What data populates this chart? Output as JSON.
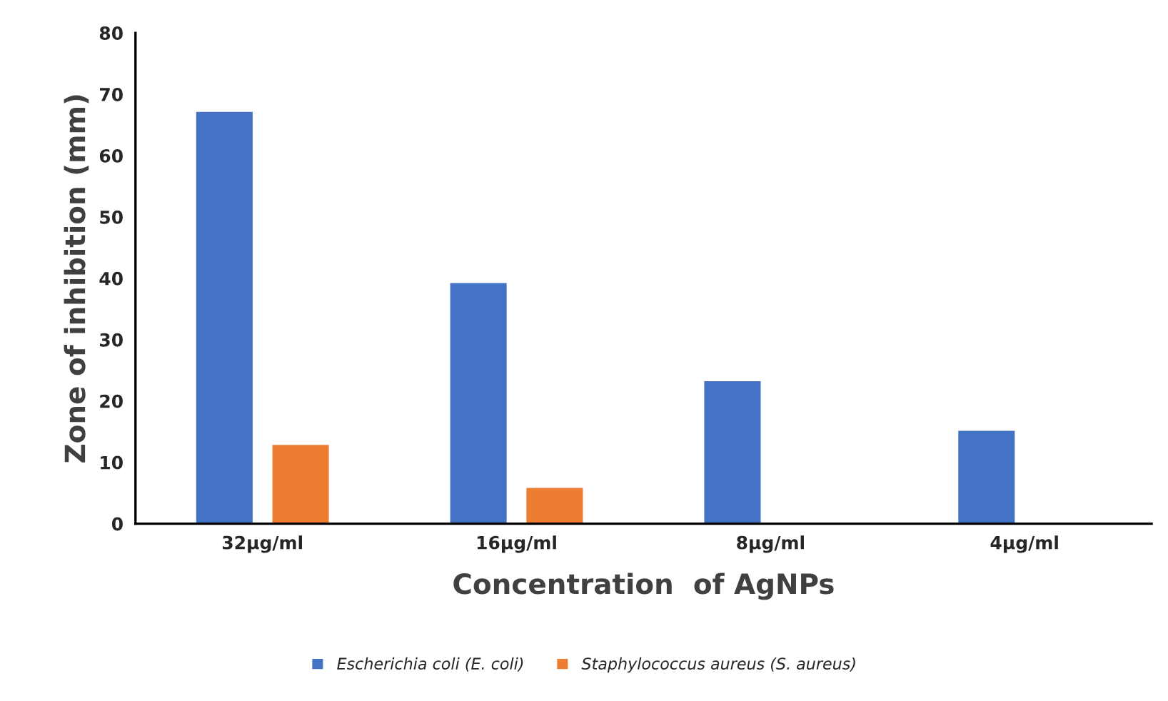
{
  "chart_data": {
    "type": "bar",
    "categories": [
      "32µg/ml",
      "16µg/ml",
      "8µg/ml",
      "4µg/ml"
    ],
    "series": [
      {
        "name": "Escherichia coli (E. coli)",
        "color": "#4472c4",
        "values": [
          67.3,
          39.4,
          23.4,
          15.3
        ]
      },
      {
        "name": "Staphylococcus aureus (S. aureus)",
        "color": "#ed7d31",
        "values": [
          13.0,
          6.0,
          null,
          null
        ]
      }
    ],
    "xlabel": "Concentration  of AgNPs",
    "ylabel": "Zone of inhibition (mm)",
    "ylim": [
      0,
      80
    ],
    "yticks": [
      0,
      10,
      20,
      30,
      40,
      50,
      60,
      70,
      80
    ],
    "grid": false,
    "legend": "bottom"
  }
}
